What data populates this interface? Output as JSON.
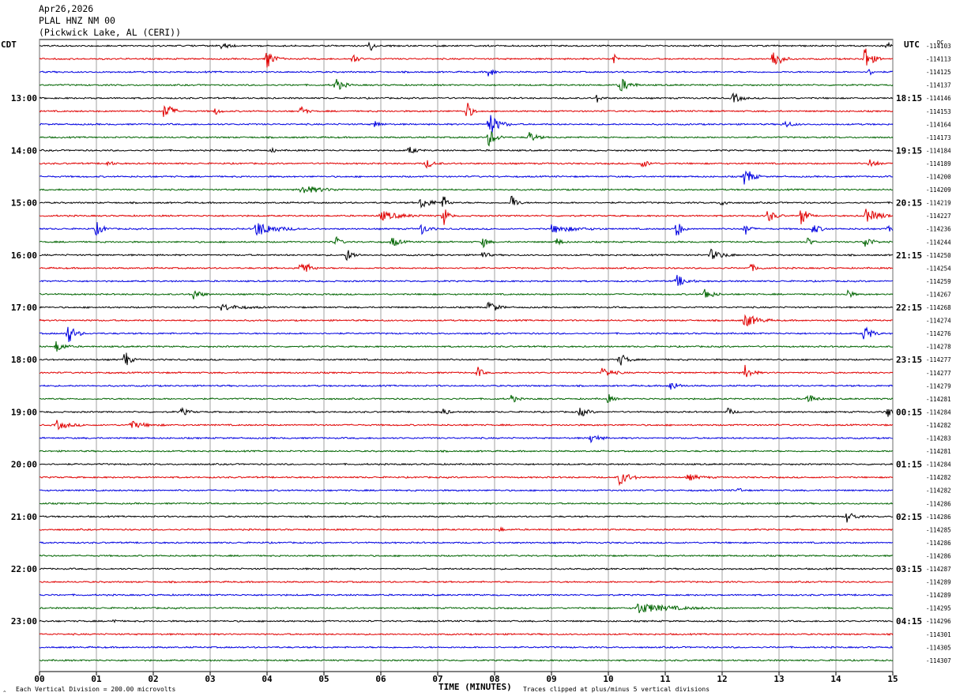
{
  "header": {
    "date": "Apr26,2026",
    "station": "PLAL HNZ NM 00",
    "location": "(Pickwick Lake, AL (CERI))"
  },
  "labels": {
    "left_tz": "CDT",
    "right_tz": "UTC",
    "dc": "DC",
    "scale_note": "Each Vertical Division =  200.00 microvolts",
    "xlabel": "TIME (MINUTES)",
    "clip_note": "Traces clipped at plus/minus 5 vertical divisions"
  },
  "chart_data": {
    "type": "line",
    "subtype": "helicorder",
    "title": "",
    "xlabel": "TIME (MINUTES)",
    "xlim": [
      0,
      15
    ],
    "x_ticks": [
      "00",
      "01",
      "02",
      "03",
      "04",
      "05",
      "06",
      "07",
      "08",
      "09",
      "10",
      "11",
      "12",
      "13",
      "14",
      "15"
    ],
    "trace_colors": [
      "#000000",
      "#e00000",
      "#0000e0",
      "#006400"
    ],
    "left_time_labels": [
      {
        "row": 4,
        "text": "13:00"
      },
      {
        "row": 8,
        "text": "14:00"
      },
      {
        "row": 12,
        "text": "15:00"
      },
      {
        "row": 16,
        "text": "16:00"
      },
      {
        "row": 20,
        "text": "17:00"
      },
      {
        "row": 24,
        "text": "18:00"
      },
      {
        "row": 28,
        "text": "19:00"
      },
      {
        "row": 32,
        "text": "20:00"
      },
      {
        "row": 36,
        "text": "21:00"
      },
      {
        "row": 40,
        "text": "22:00"
      },
      {
        "row": 44,
        "text": "23:00"
      }
    ],
    "right_time_labels": [
      {
        "row": 4,
        "text": "18:15"
      },
      {
        "row": 8,
        "text": "19:15"
      },
      {
        "row": 12,
        "text": "20:15"
      },
      {
        "row": 16,
        "text": "21:15"
      },
      {
        "row": 20,
        "text": "22:15"
      },
      {
        "row": 24,
        "text": "23:15"
      },
      {
        "row": 28,
        "text": "00:15"
      },
      {
        "row": 32,
        "text": "01:15"
      },
      {
        "row": 36,
        "text": "02:15"
      },
      {
        "row": 40,
        "text": "03:15"
      },
      {
        "row": 44,
        "text": "04:15"
      }
    ],
    "dc_offsets": [
      "-114103",
      "-114113",
      "-114125",
      "-114137",
      "-114146",
      "-114153",
      "-114164",
      "-114173",
      "-114184",
      "-114189",
      "-114200",
      "-114209",
      "-114219",
      "-114227",
      "-114236",
      "-114244",
      "-114250",
      "-114254",
      "-114259",
      "-114267",
      "-114268",
      "-114274",
      "-114276",
      "-114278",
      "-114277",
      "-114277",
      "-114279",
      "-114281",
      "-114284",
      "-114282",
      "-114283",
      "-114281",
      "-114284",
      "-114282",
      "-114282",
      "-114286",
      "-114286",
      "-114285",
      "-114286",
      "-114286",
      "-114287",
      "-114289",
      "-114289",
      "-114295",
      "-114296",
      "-114301",
      "-114305",
      "-114307"
    ],
    "events": [
      {
        "row": 0,
        "minute": 3.2,
        "amp": 5,
        "dur": 0.3
      },
      {
        "row": 0,
        "minute": 5.8,
        "amp": 10,
        "dur": 0.15
      },
      {
        "row": 0,
        "minute": 14.9,
        "amp": 5,
        "dur": 0.2
      },
      {
        "row": 1,
        "minute": 4.0,
        "amp": 12,
        "dur": 0.3
      },
      {
        "row": 1,
        "minute": 5.5,
        "amp": 8,
        "dur": 0.2
      },
      {
        "row": 1,
        "minute": 10.1,
        "amp": 10,
        "dur": 0.1
      },
      {
        "row": 1,
        "minute": 12.9,
        "amp": 16,
        "dur": 0.3
      },
      {
        "row": 1,
        "minute": 14.5,
        "amp": 18,
        "dur": 0.3
      },
      {
        "row": 2,
        "minute": 7.9,
        "amp": 8,
        "dur": 0.2
      },
      {
        "row": 2,
        "minute": 14.6,
        "amp": 6,
        "dur": 0.1
      },
      {
        "row": 3,
        "minute": 5.2,
        "amp": 10,
        "dur": 0.3
      },
      {
        "row": 3,
        "minute": 10.2,
        "amp": 10,
        "dur": 0.4
      },
      {
        "row": 4,
        "minute": 9.8,
        "amp": 5,
        "dur": 0.2
      },
      {
        "row": 4,
        "minute": 12.2,
        "amp": 7,
        "dur": 0.3
      },
      {
        "row": 5,
        "minute": 2.2,
        "amp": 14,
        "dur": 0.3
      },
      {
        "row": 5,
        "minute": 3.1,
        "amp": 5,
        "dur": 0.15
      },
      {
        "row": 5,
        "minute": 4.6,
        "amp": 7,
        "dur": 0.2
      },
      {
        "row": 5,
        "minute": 7.5,
        "amp": 16,
        "dur": 0.2
      },
      {
        "row": 6,
        "minute": 5.9,
        "amp": 5,
        "dur": 0.2
      },
      {
        "row": 6,
        "minute": 7.9,
        "amp": 16,
        "dur": 0.4
      },
      {
        "row": 6,
        "minute": 13.1,
        "amp": 5,
        "dur": 0.3
      },
      {
        "row": 7,
        "minute": 7.9,
        "amp": 12,
        "dur": 0.3
      },
      {
        "row": 7,
        "minute": 8.6,
        "amp": 8,
        "dur": 0.3
      },
      {
        "row": 8,
        "minute": 4.1,
        "amp": 4,
        "dur": 0.1
      },
      {
        "row": 8,
        "minute": 6.5,
        "amp": 5,
        "dur": 0.3
      },
      {
        "row": 9,
        "minute": 1.2,
        "amp": 4,
        "dur": 0.2
      },
      {
        "row": 9,
        "minute": 6.8,
        "amp": 6,
        "dur": 0.3
      },
      {
        "row": 9,
        "minute": 10.6,
        "amp": 5,
        "dur": 0.3
      },
      {
        "row": 9,
        "minute": 14.6,
        "amp": 6,
        "dur": 0.3
      },
      {
        "row": 10,
        "minute": 12.4,
        "amp": 14,
        "dur": 0.3
      },
      {
        "row": 11,
        "minute": 4.6,
        "amp": 6,
        "dur": 0.8
      },
      {
        "row": 12,
        "minute": 6.7,
        "amp": 7,
        "dur": 0.5
      },
      {
        "row": 12,
        "minute": 7.1,
        "amp": 9,
        "dur": 0.2
      },
      {
        "row": 12,
        "minute": 8.3,
        "amp": 12,
        "dur": 0.2
      },
      {
        "row": 12,
        "minute": 12.0,
        "amp": 5,
        "dur": 0.2
      },
      {
        "row": 13,
        "minute": 6.0,
        "amp": 6,
        "dur": 0.8
      },
      {
        "row": 13,
        "minute": 7.1,
        "amp": 14,
        "dur": 0.2
      },
      {
        "row": 13,
        "minute": 12.8,
        "amp": 9,
        "dur": 0.3
      },
      {
        "row": 13,
        "minute": 13.4,
        "amp": 16,
        "dur": 0.2
      },
      {
        "row": 13,
        "minute": 14.5,
        "amp": 9,
        "dur": 0.7
      },
      {
        "row": 14,
        "minute": 1.0,
        "amp": 9,
        "dur": 0.3
      },
      {
        "row": 14,
        "minute": 3.8,
        "amp": 10,
        "dur": 0.8
      },
      {
        "row": 14,
        "minute": 6.7,
        "amp": 8,
        "dur": 0.3
      },
      {
        "row": 14,
        "minute": 9.0,
        "amp": 5,
        "dur": 1.0
      },
      {
        "row": 14,
        "minute": 11.2,
        "amp": 14,
        "dur": 0.2
      },
      {
        "row": 14,
        "minute": 12.4,
        "amp": 9,
        "dur": 0.2
      },
      {
        "row": 14,
        "minute": 13.6,
        "amp": 7,
        "dur": 0.3
      },
      {
        "row": 14,
        "minute": 14.9,
        "amp": 5,
        "dur": 0.2
      },
      {
        "row": 15,
        "minute": 5.2,
        "amp": 8,
        "dur": 0.2
      },
      {
        "row": 15,
        "minute": 6.2,
        "amp": 7,
        "dur": 0.3
      },
      {
        "row": 15,
        "minute": 7.8,
        "amp": 7,
        "dur": 0.2
      },
      {
        "row": 15,
        "minute": 9.1,
        "amp": 5,
        "dur": 0.2
      },
      {
        "row": 15,
        "minute": 13.5,
        "amp": 6,
        "dur": 0.2
      },
      {
        "row": 15,
        "minute": 14.5,
        "amp": 9,
        "dur": 0.3
      },
      {
        "row": 16,
        "minute": 5.4,
        "amp": 8,
        "dur": 0.3
      },
      {
        "row": 16,
        "minute": 7.8,
        "amp": 6,
        "dur": 0.2
      },
      {
        "row": 16,
        "minute": 11.8,
        "amp": 7,
        "dur": 0.5
      },
      {
        "row": 17,
        "minute": 4.6,
        "amp": 14,
        "dur": 0.3
      },
      {
        "row": 17,
        "minute": 12.5,
        "amp": 5,
        "dur": 0.3
      },
      {
        "row": 18,
        "minute": 11.2,
        "amp": 8,
        "dur": 0.4
      },
      {
        "row": 19,
        "minute": 2.7,
        "amp": 8,
        "dur": 0.3
      },
      {
        "row": 19,
        "minute": 11.7,
        "amp": 9,
        "dur": 0.3
      },
      {
        "row": 19,
        "minute": 14.2,
        "amp": 7,
        "dur": 0.2
      },
      {
        "row": 20,
        "minute": 3.2,
        "amp": 4,
        "dur": 0.8
      },
      {
        "row": 20,
        "minute": 7.9,
        "amp": 10,
        "dur": 0.3
      },
      {
        "row": 21,
        "minute": 12.4,
        "amp": 10,
        "dur": 0.5
      },
      {
        "row": 22,
        "minute": 0.5,
        "amp": 14,
        "dur": 0.3
      },
      {
        "row": 22,
        "minute": 14.5,
        "amp": 12,
        "dur": 0.3
      },
      {
        "row": 23,
        "minute": 0.3,
        "amp": 8,
        "dur": 0.3
      },
      {
        "row": 24,
        "minute": 1.5,
        "amp": 14,
        "dur": 0.2
      },
      {
        "row": 24,
        "minute": 10.2,
        "amp": 9,
        "dur": 0.3
      },
      {
        "row": 25,
        "minute": 7.7,
        "amp": 8,
        "dur": 0.2
      },
      {
        "row": 25,
        "minute": 9.9,
        "amp": 7,
        "dur": 0.4
      },
      {
        "row": 25,
        "minute": 12.4,
        "amp": 10,
        "dur": 0.3
      },
      {
        "row": 26,
        "minute": 11.1,
        "amp": 7,
        "dur": 0.3
      },
      {
        "row": 27,
        "minute": 8.3,
        "amp": 6,
        "dur": 0.2
      },
      {
        "row": 27,
        "minute": 10.0,
        "amp": 6,
        "dur": 0.2
      },
      {
        "row": 27,
        "minute": 13.5,
        "amp": 7,
        "dur": 0.3
      },
      {
        "row": 28,
        "minute": 2.5,
        "amp": 5,
        "dur": 0.3
      },
      {
        "row": 28,
        "minute": 7.1,
        "amp": 5,
        "dur": 0.2
      },
      {
        "row": 28,
        "minute": 9.5,
        "amp": 7,
        "dur": 0.3
      },
      {
        "row": 28,
        "minute": 12.1,
        "amp": 6,
        "dur": 0.2
      },
      {
        "row": 28,
        "minute": 14.9,
        "amp": 8,
        "dur": 0.2
      },
      {
        "row": 29,
        "minute": 0.3,
        "amp": 6,
        "dur": 0.5
      },
      {
        "row": 29,
        "minute": 1.6,
        "amp": 5,
        "dur": 0.6
      },
      {
        "row": 30,
        "minute": 9.7,
        "amp": 7,
        "dur": 0.3
      },
      {
        "row": 33,
        "minute": 10.2,
        "amp": 10,
        "dur": 0.4
      },
      {
        "row": 33,
        "minute": 11.4,
        "amp": 4,
        "dur": 0.5
      },
      {
        "row": 34,
        "minute": 12.3,
        "amp": 5,
        "dur": 0.1
      },
      {
        "row": 37,
        "minute": 8.1,
        "amp": 4,
        "dur": 0.1
      },
      {
        "row": 36,
        "minute": 14.2,
        "amp": 8,
        "dur": 0.3
      },
      {
        "row": 43,
        "minute": 10.5,
        "amp": 7,
        "dur": 1.4
      },
      {
        "row": 44,
        "minute": 1.3,
        "amp": 4,
        "dur": 0.1
      }
    ]
  }
}
